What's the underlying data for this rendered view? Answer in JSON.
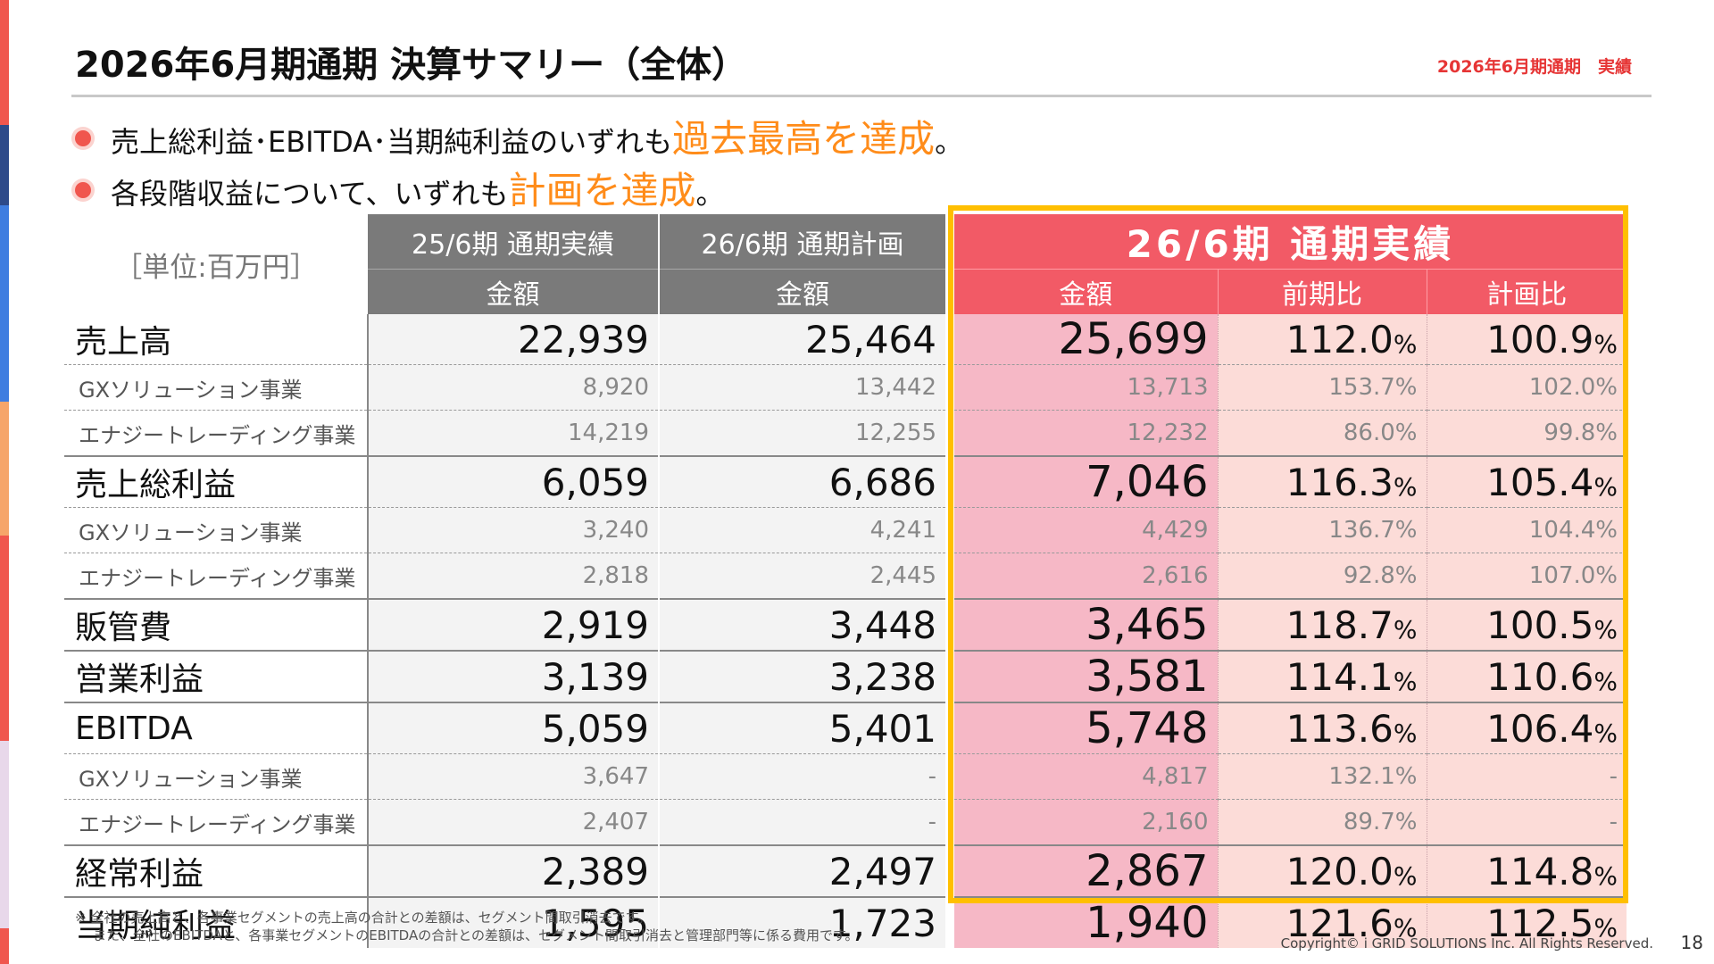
{
  "title": "2026年6月期通期 決算サマリー（全体）",
  "tag": "2026年6月期通期　実績",
  "bullets": [
    {
      "text": "売上総利益･EBITDA･当期純利益のいずれも",
      "highlight": "過去最高を達成",
      "suffix": "。"
    },
    {
      "text": "各段階収益について、いずれも",
      "highlight": "計画を達成",
      "suffix": "。"
    }
  ],
  "table": {
    "unit_label": "［単位:百万円］",
    "col_headers": {
      "prev_year": "25/6期 通期実績",
      "plan": "26/6期 通期計画",
      "actual": "26/6期 通期実績",
      "amount": "金額",
      "yoy": "前期比",
      "vs_plan": "計画比",
      "pct_unit": "%"
    },
    "rows": [
      {
        "label": "売上高",
        "type": "main",
        "prev": "22,939",
        "plan": "25,464",
        "actual": "25,699",
        "yoy": "112.0",
        "vsplan": "100.9"
      },
      {
        "label": "GXソリューション事業",
        "type": "sub",
        "prev": "8,920",
        "plan": "13,442",
        "actual": "13,713",
        "yoy": "153.7%",
        "vsplan": "102.0%"
      },
      {
        "label": "エナジートレーディング事業",
        "type": "sub",
        "prev": "14,219",
        "plan": "12,255",
        "actual": "12,232",
        "yoy": "86.0%",
        "vsplan": "99.8%"
      },
      {
        "label": "売上総利益",
        "type": "main",
        "prev": "6,059",
        "plan": "6,686",
        "actual": "7,046",
        "yoy": "116.3",
        "vsplan": "105.4"
      },
      {
        "label": "GXソリューション事業",
        "type": "sub",
        "prev": "3,240",
        "plan": "4,241",
        "actual": "4,429",
        "yoy": "136.7%",
        "vsplan": "104.4%"
      },
      {
        "label": "エナジートレーディング事業",
        "type": "sub",
        "prev": "2,818",
        "plan": "2,445",
        "actual": "2,616",
        "yoy": "92.8%",
        "vsplan": "107.0%"
      },
      {
        "label": "販管費",
        "type": "main",
        "prev": "2,919",
        "plan": "3,448",
        "actual": "3,465",
        "yoy": "118.7",
        "vsplan": "100.5"
      },
      {
        "label": "営業利益",
        "type": "main",
        "prev": "3,139",
        "plan": "3,238",
        "actual": "3,581",
        "yoy": "114.1",
        "vsplan": "110.6"
      },
      {
        "label": "EBITDA",
        "type": "main",
        "prev": "5,059",
        "plan": "5,401",
        "actual": "5,748",
        "yoy": "113.6",
        "vsplan": "106.4"
      },
      {
        "label": "GXソリューション事業",
        "type": "sub",
        "prev": "3,647",
        "plan": "-",
        "actual": "4,817",
        "yoy": "132.1%",
        "vsplan": "-"
      },
      {
        "label": "エナジートレーディング事業",
        "type": "sub",
        "prev": "2,407",
        "plan": "-",
        "actual": "2,160",
        "yoy": "89.7%",
        "vsplan": "-"
      },
      {
        "label": "経常利益",
        "type": "main",
        "prev": "2,389",
        "plan": "2,497",
        "actual": "2,867",
        "yoy": "120.0",
        "vsplan": "114.8"
      },
      {
        "label": "当期純利益",
        "type": "main",
        "prev": "1,595",
        "plan": "1,723",
        "actual": "1,940",
        "yoy": "121.6",
        "vsplan": "112.5"
      }
    ]
  },
  "footnote": [
    "※ 全社の売上高と、各事業セグメントの売上高の合計との差額は、セグメント間取引消去です。",
    "また、全社のEBITDAと、各事業セグメントのEBITDAの合計との差額は、セグメント間取引消去と管理部門等に係る費用です。"
  ],
  "copyright": "Copyright© i GRID SOLUTIONS Inc. All Rights Reserved.",
  "page_number": "18",
  "colors": {
    "accent_red": "#f25a66",
    "gold": "#ffbf00",
    "highlight_orange": "#ff8c1a"
  }
}
